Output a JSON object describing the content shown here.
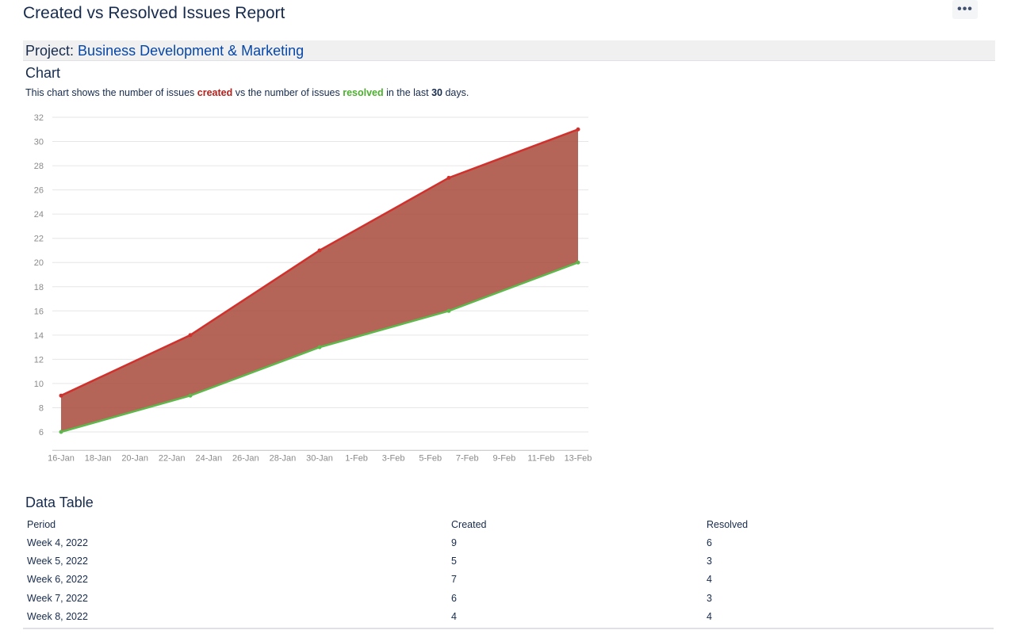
{
  "header": {
    "title": "Created vs Resolved Issues Report",
    "more_label": "•••"
  },
  "project": {
    "label": "Project:",
    "name": "Business Development & Marketing"
  },
  "chart_section": {
    "heading": "Chart",
    "description": {
      "part1": "This chart shows the number of issues ",
      "created_word": "created",
      "part2": " vs the number of issues ",
      "resolved_word": "resolved",
      "part3": " in the last ",
      "days": "30",
      "part4": " days."
    }
  },
  "chart_data": {
    "type": "area",
    "x": [
      "16-Jan",
      "23-Jan",
      "30-Jan",
      "6-Feb",
      "13-Feb"
    ],
    "x_tick_labels": [
      "16-Jan",
      "18-Jan",
      "20-Jan",
      "22-Jan",
      "24-Jan",
      "26-Jan",
      "28-Jan",
      "30-Jan",
      "1-Feb",
      "3-Feb",
      "5-Feb",
      "7-Feb",
      "9-Feb",
      "11-Feb",
      "13-Feb"
    ],
    "series": [
      {
        "key": "created",
        "color": "#d0312d",
        "values": [
          9,
          14,
          21,
          27,
          31
        ]
      },
      {
        "key": "resolved",
        "color": "#5cb84a",
        "values": [
          6,
          9,
          13,
          16,
          20
        ]
      }
    ],
    "fill_color": "#a84a3a",
    "ylim": [
      5,
      32
    ],
    "y_ticks": [
      6,
      8,
      10,
      12,
      14,
      16,
      18,
      20,
      22,
      24,
      26,
      28,
      30,
      32
    ],
    "grid": true,
    "title": "",
    "xlabel": "",
    "ylabel": ""
  },
  "table_section": {
    "heading": "Data Table",
    "columns": [
      "Period",
      "Created",
      "Resolved"
    ],
    "rows": [
      [
        "Week 4, 2022",
        "9",
        "6"
      ],
      [
        "Week 5, 2022",
        "5",
        "3"
      ],
      [
        "Week 6, 2022",
        "7",
        "4"
      ],
      [
        "Week 7, 2022",
        "6",
        "3"
      ],
      [
        "Week 8, 2022",
        "4",
        "4"
      ]
    ]
  }
}
